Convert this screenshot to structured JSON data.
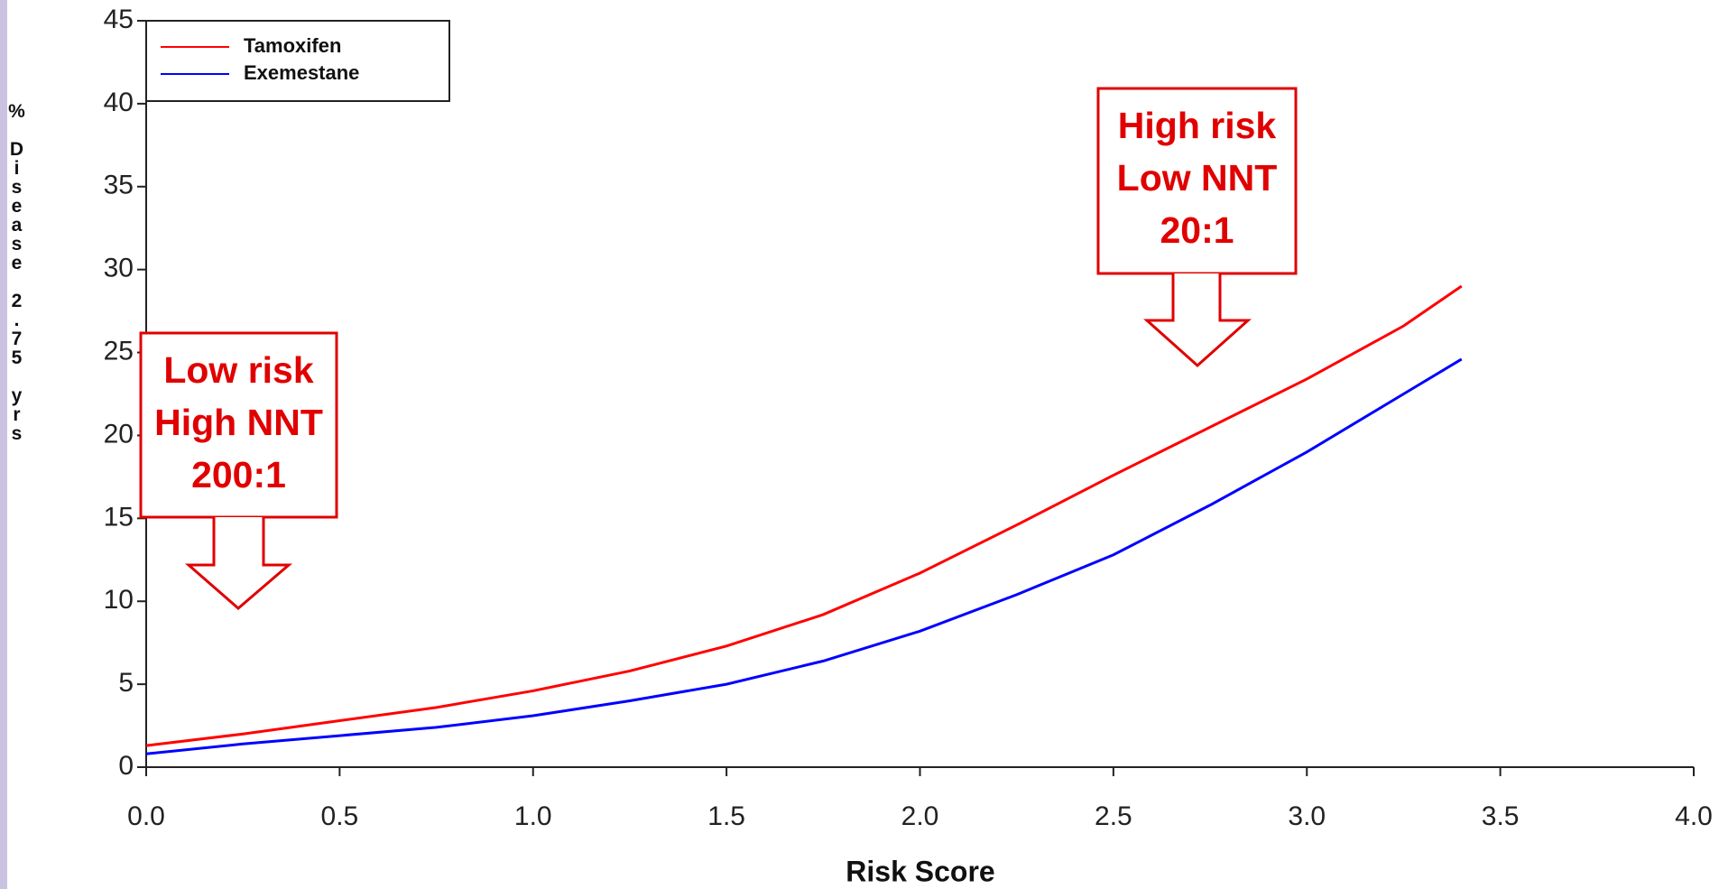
{
  "chart_data": {
    "type": "line",
    "x_label": "Risk Score",
    "y_label": "% Disease 2.75 yrs",
    "x": [
      0,
      0.25,
      0.5,
      0.75,
      1.0,
      1.25,
      1.5,
      1.75,
      2.0,
      2.25,
      2.5,
      2.75,
      3.0,
      3.25,
      3.4
    ],
    "series": [
      {
        "name": "Tamoxifen",
        "color": "#ff0000",
        "values": [
          1.3,
          2.0,
          2.8,
          3.6,
          4.6,
          5.8,
          7.3,
          9.2,
          11.7,
          14.6,
          17.6,
          20.5,
          23.4,
          26.6,
          29.0
        ]
      },
      {
        "name": "Exemestane",
        "color": "#0000ff",
        "values": [
          0.8,
          1.4,
          1.9,
          2.4,
          3.1,
          4.0,
          5.0,
          6.4,
          8.2,
          10.4,
          12.8,
          15.8,
          19.0,
          22.5,
          24.6
        ]
      }
    ],
    "xlim": [
      0,
      4.0
    ],
    "xticks": [
      {
        "value": 0,
        "label": "0.0"
      },
      0.5,
      {
        "value": 1,
        "label": "1.0"
      },
      1.5,
      {
        "value": 2,
        "label": "2.0"
      },
      2.5,
      {
        "value": 3,
        "label": "3.0"
      },
      3.5,
      {
        "value": 4,
        "label": "4.0"
      }
    ],
    "ylim": [
      0,
      45
    ],
    "yticks": [
      0,
      5,
      10,
      15,
      20,
      25,
      30,
      35,
      40,
      45
    ],
    "legend": "upper left",
    "annotations": [
      {
        "lines": [
          "Low risk",
          "High NNT",
          "200:1"
        ]
      },
      {
        "lines": [
          "High risk",
          "Low NNT",
          "20:1"
        ]
      }
    ]
  }
}
